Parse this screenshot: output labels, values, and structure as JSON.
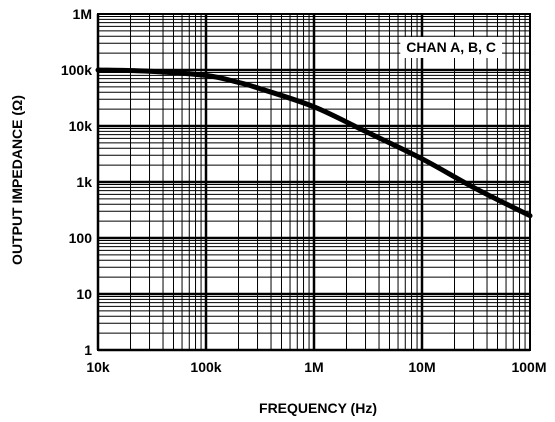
{
  "chart_data": {
    "type": "line",
    "title": "",
    "xlabel": "FREQUENCY (Hz)",
    "ylabel": "OUTPUT IMPEDANCE (Ω)",
    "x_scale": "log",
    "y_scale": "log",
    "xlim": [
      10000,
      100000000
    ],
    "ylim": [
      1,
      1000000
    ],
    "x_tick_labels": [
      "10k",
      "100k",
      "1M",
      "10M",
      "100M"
    ],
    "y_tick_labels": [
      "1",
      "10",
      "100",
      "1k",
      "10k",
      "100k",
      "1M"
    ],
    "grid": true,
    "legend_position": "top-right",
    "series": [
      {
        "name": "CHAN A, B, C",
        "color": "#000000",
        "x": [
          10000,
          30000,
          100000,
          200000,
          300000,
          1000000,
          3000000,
          10000000,
          30000000,
          100000000
        ],
        "y": [
          100000,
          95000,
          80000,
          60000,
          48000,
          22000,
          8000,
          2600,
          800,
          250
        ]
      }
    ]
  }
}
